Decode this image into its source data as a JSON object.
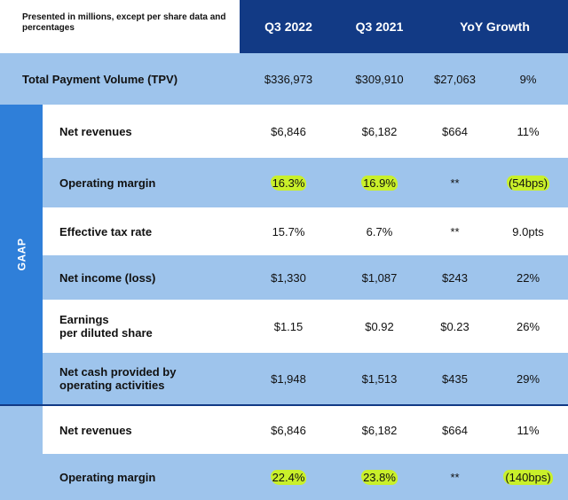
{
  "header": {
    "note": "Presented in millions, except per share data and percentages",
    "columns": [
      "Q3 2022",
      "Q3 2021",
      "YoY Growth"
    ]
  },
  "tpv": {
    "label": "Total Payment Volume (TPV)",
    "q3_2022": "$336,973",
    "q3_2021": "$309,910",
    "growth_abs": "$27,063",
    "growth_pct": "9%"
  },
  "gaap": {
    "section_label": "GAAP",
    "rows": [
      {
        "label": "Net revenues",
        "q3_2022": "$6,846",
        "q3_2021": "$6,182",
        "growth_abs": "$664",
        "growth_pct": "11%"
      },
      {
        "label": "Operating margin",
        "q3_2022": "16.3%",
        "q3_2021": "16.9%",
        "growth_abs": "**",
        "growth_pct": "(54bps)"
      },
      {
        "label": "Effective tax rate",
        "q3_2022": "15.7%",
        "q3_2021": "6.7%",
        "growth_abs": "**",
        "growth_pct": "9.0pts"
      },
      {
        "label": "Net income (loss)",
        "q3_2022": "$1,330",
        "q3_2021": "$1,087",
        "growth_abs": "$243",
        "growth_pct": "22%"
      },
      {
        "label_line1": "Earnings",
        "label_line2": "per diluted share",
        "q3_2022": "$1.15",
        "q3_2021": "$0.92",
        "growth_abs": "$0.23",
        "growth_pct": "26%"
      },
      {
        "label_line1": "Net cash provided by",
        "label_line2": "operating activities",
        "q3_2022": "$1,948",
        "q3_2021": "$1,513",
        "growth_abs": "$435",
        "growth_pct": "29%"
      }
    ]
  },
  "non_gaap": {
    "rows": [
      {
        "label": "Net revenues",
        "q3_2022": "$6,846",
        "q3_2021": "$6,182",
        "growth_abs": "$664",
        "growth_pct": "11%"
      },
      {
        "label": "Operating margin",
        "q3_2022": "22.4%",
        "q3_2021": "23.8%",
        "growth_abs": "**",
        "growth_pct": "(140bps)"
      }
    ]
  },
  "colors": {
    "header_navy": "#123a85",
    "row_light_blue": "#9ec4ec",
    "gaap_side_blue": "#2f7fd9",
    "highlighter": "#c9f02a"
  }
}
